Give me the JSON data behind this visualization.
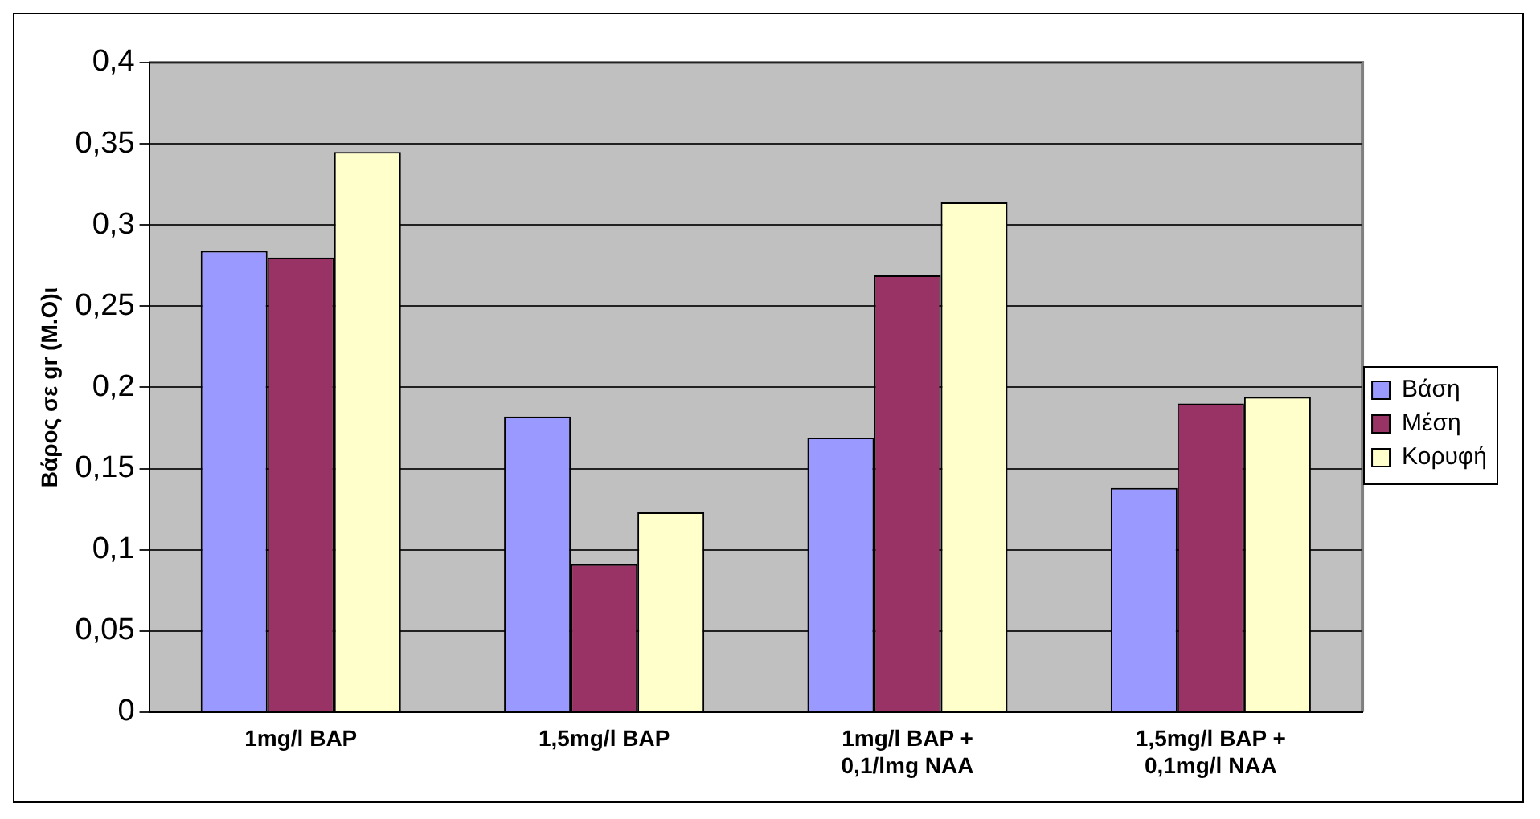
{
  "chart_data": {
    "type": "bar",
    "ylabel": "Βάρος σε gr (Μ.Ο)ι",
    "categories": [
      "1mg/l BAP",
      "1,5mg/l BAP",
      "1mg/l BAP +\n0,1/lmg NAA",
      "1,5mg/l BAP +\n0,1mg/l NAA"
    ],
    "series": [
      {
        "name": "Βάση",
        "color": "#9999ff",
        "values": [
          0.284,
          0.182,
          0.169,
          0.138
        ]
      },
      {
        "name": "Μέση",
        "color": "#993366",
        "values": [
          0.28,
          0.091,
          0.269,
          0.19
        ]
      },
      {
        "name": "Κορυφή",
        "color": "#ffffcc",
        "values": [
          0.345,
          0.123,
          0.314,
          0.194
        ]
      }
    ],
    "ylim": [
      0,
      0.4
    ],
    "yticks": [
      {
        "value": 0,
        "label": "0"
      },
      {
        "value": 0.05,
        "label": "0,05"
      },
      {
        "value": 0.1,
        "label": "0,1"
      },
      {
        "value": 0.15,
        "label": "0,15"
      },
      {
        "value": 0.2,
        "label": "0,2"
      },
      {
        "value": 0.25,
        "label": "0,25"
      },
      {
        "value": 0.3,
        "label": "0,3"
      },
      {
        "value": 0.35,
        "label": "0,35"
      },
      {
        "value": 0.4,
        "label": "0,4"
      }
    ],
    "grid": "y",
    "legend": "right"
  }
}
